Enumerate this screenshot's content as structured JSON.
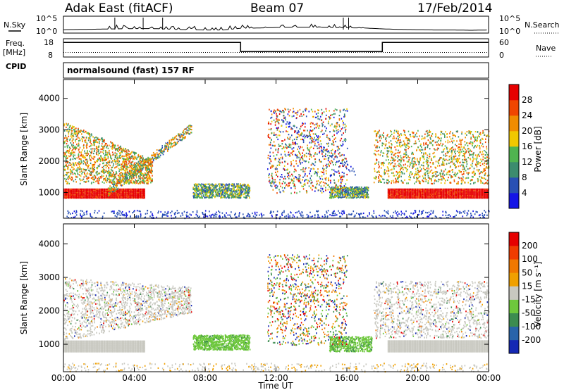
{
  "header": {
    "station": "Adak East (fitACF)",
    "beam": "Beam 07",
    "date": "17/Feb/2014"
  },
  "left_labels": {
    "nsky": "N.Sky",
    "nsky_top": "10^5",
    "nsky_bottom": "10^0",
    "freq": "Freq.",
    "freq_unit": "[MHz]",
    "freq_top": "18",
    "freq_bottom": "8",
    "cpid": "CPID"
  },
  "right_labels": {
    "nsearch": "N.Search",
    "nsearch_top": "10^5",
    "nsearch_bottom": "10^0",
    "nave": "Nave",
    "nave_top": "60",
    "nave_bottom": "0"
  },
  "cpid_text": "normalsound (fast) 157 RF",
  "axes": {
    "ylabel": "Slant Range [km]",
    "xlabel": "Time UT",
    "yticks": [
      "1000",
      "2000",
      "3000",
      "4000"
    ],
    "xticks": [
      "00:00",
      "04:00",
      "08:00",
      "12:00",
      "16:00",
      "20:00",
      "00:00"
    ]
  },
  "colorbars": {
    "power": {
      "label": "Power [dB]",
      "ticks": [
        "4",
        "8",
        "12",
        "16",
        "20",
        "24",
        "28"
      ],
      "colors": [
        "#1414e6",
        "#2850b4",
        "#3c8c6e",
        "#50b450",
        "#f0c800",
        "#f08c00",
        "#f04600",
        "#e60000"
      ]
    },
    "velocity": {
      "label": "Velocity [m s⁻¹]",
      "ticks": [
        "200",
        "100",
        "50",
        "15",
        "-15",
        "-50",
        "-100",
        "-200"
      ],
      "colors": [
        "#1428b4",
        "#2864aa",
        "#3c8c50",
        "#6ec83c",
        "#c8c8c0",
        "#f0a000",
        "#f07800",
        "#f03c00",
        "#e60000"
      ]
    }
  },
  "chart_data": [
    {
      "type": "line",
      "name": "N.Sky / N.Search noise",
      "x": [
        0,
        2,
        3,
        4,
        5,
        6,
        7,
        8,
        9,
        10,
        11,
        12,
        13,
        14,
        15,
        16,
        17,
        18,
        19,
        20,
        21,
        22,
        23,
        24
      ],
      "y_log": [
        0.7,
        0.9,
        1.0,
        1.1,
        1.1,
        0.9,
        0.7,
        0.6,
        0.6,
        1.2,
        1.3,
        1.5,
        1.6,
        1.6,
        1.5,
        1.4,
        1.3,
        1.0,
        0.8,
        0.7,
        0.6,
        0.6,
        0.5,
        0.6
      ],
      "ylim": [
        "10^0",
        "10^5"
      ]
    },
    {
      "type": "line",
      "name": "Freq / Nave",
      "x": [
        0,
        10,
        10,
        18,
        18,
        24
      ],
      "freq_mhz": [
        16,
        16,
        11,
        11,
        16,
        16
      ],
      "nave": [
        15,
        15,
        15,
        15,
        15,
        15
      ],
      "ylim_freq": [
        8,
        18
      ],
      "ylim_nave": [
        0,
        60
      ]
    },
    {
      "type": "heatmap",
      "name": "Power",
      "x_range_hours": [
        0,
        24
      ],
      "y_range_km": [
        180,
        4600
      ],
      "colorbar_range_db": [
        0,
        32
      ]
    },
    {
      "type": "heatmap",
      "name": "Velocity",
      "x_range_hours": [
        0,
        24
      ],
      "y_range_km": [
        180,
        4600
      ],
      "colorbar_range_ms": [
        -250,
        250
      ]
    }
  ]
}
